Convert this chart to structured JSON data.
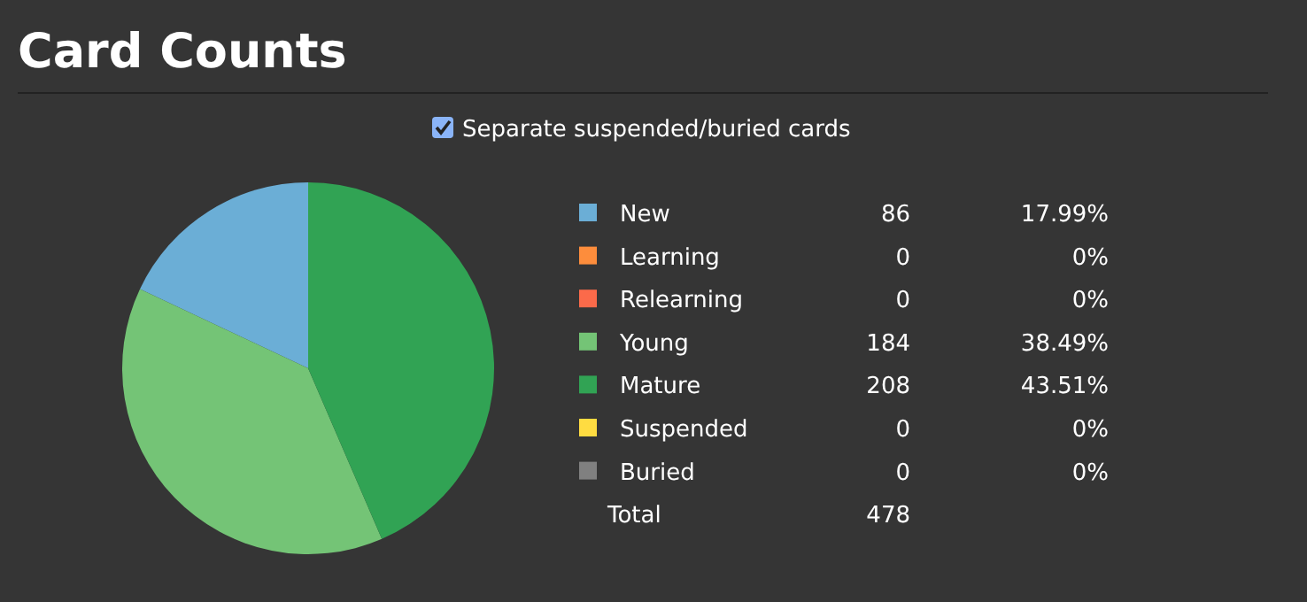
{
  "chart_data": {
    "type": "pie",
    "title": "Card Counts",
    "subtitle": "Separate suspended/buried cards",
    "categories": [
      "New",
      "Learning",
      "Relearning",
      "Young",
      "Mature",
      "Suspended",
      "Buried"
    ],
    "values": [
      17.99,
      0,
      0,
      38.49,
      43.51,
      0,
      0
    ],
    "colors": [
      "#6baed6",
      "#fd8d3c",
      "#fb6a4a",
      "#74c476",
      "#31a354",
      "#ffdc41",
      "#808080"
    ],
    "value_labels": [
      "17.99%",
      "0%",
      "0%",
      "38.49%",
      "43.51%",
      "0%",
      "0%"
    ],
    "annotations": [
      "86",
      "0",
      "0",
      "184",
      "208",
      "0",
      "0",
      "Total"
    ],
    "totals": [
      "478"
    ],
    "legend": "right"
  }
}
